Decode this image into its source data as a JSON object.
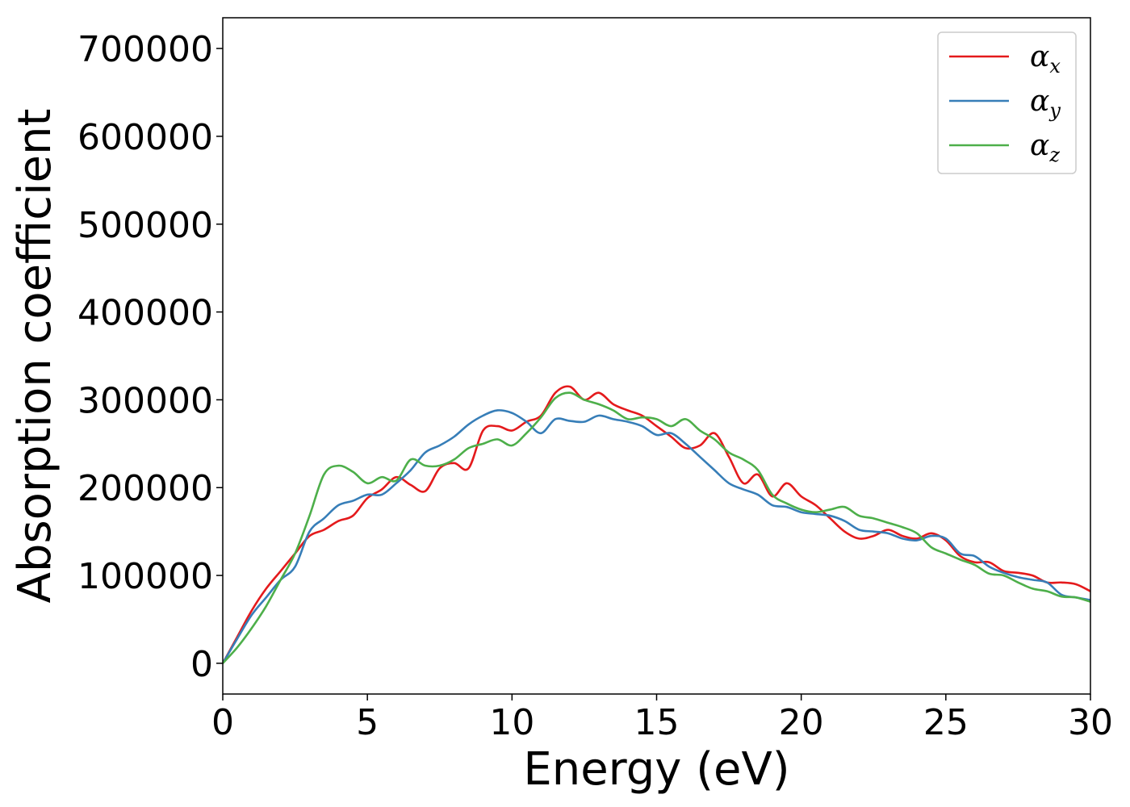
{
  "chart_data": {
    "type": "line",
    "title": "",
    "xlabel": "Energy (eV)",
    "ylabel": "Absorption coefficient",
    "xlim": [
      0,
      30
    ],
    "ylim": [
      -35000,
      735000
    ],
    "xticks": [
      0,
      5,
      10,
      15,
      20,
      25,
      30
    ],
    "yticks": [
      0,
      100000,
      200000,
      300000,
      400000,
      500000,
      600000,
      700000
    ],
    "grid": false,
    "legend_position": "top-right",
    "series": [
      {
        "name": "α_x",
        "name_base": "α",
        "name_sub": "x",
        "color": "#e41a1c",
        "points": [
          [
            0,
            0
          ],
          [
            0.5,
            30000
          ],
          [
            1,
            60000
          ],
          [
            1.5,
            85000
          ],
          [
            2,
            105000
          ],
          [
            2.5,
            125000
          ],
          [
            3,
            145000
          ],
          [
            3.5,
            152000
          ],
          [
            4,
            162000
          ],
          [
            4.5,
            168000
          ],
          [
            5,
            188000
          ],
          [
            5.5,
            198000
          ],
          [
            6,
            212000
          ],
          [
            6.5,
            203000
          ],
          [
            7,
            196000
          ],
          [
            7.5,
            222000
          ],
          [
            8,
            228000
          ],
          [
            8.5,
            222000
          ],
          [
            9,
            265000
          ],
          [
            9.5,
            270000
          ],
          [
            10,
            265000
          ],
          [
            10.5,
            275000
          ],
          [
            11,
            282000
          ],
          [
            11.5,
            308000
          ],
          [
            12,
            315000
          ],
          [
            12.5,
            300000
          ],
          [
            13,
            308000
          ],
          [
            13.5,
            295000
          ],
          [
            14,
            288000
          ],
          [
            14.5,
            282000
          ],
          [
            15,
            270000
          ],
          [
            15.5,
            258000
          ],
          [
            16,
            245000
          ],
          [
            16.5,
            248000
          ],
          [
            17,
            262000
          ],
          [
            17.5,
            235000
          ],
          [
            18,
            205000
          ],
          [
            18.5,
            215000
          ],
          [
            19,
            190000
          ],
          [
            19.5,
            205000
          ],
          [
            20,
            190000
          ],
          [
            20.5,
            180000
          ],
          [
            21,
            165000
          ],
          [
            21.5,
            150000
          ],
          [
            22,
            142000
          ],
          [
            22.5,
            145000
          ],
          [
            23,
            152000
          ],
          [
            23.5,
            145000
          ],
          [
            24,
            142000
          ],
          [
            24.5,
            148000
          ],
          [
            25,
            140000
          ],
          [
            25.5,
            122000
          ],
          [
            26,
            115000
          ],
          [
            26.5,
            115000
          ],
          [
            27,
            105000
          ],
          [
            27.5,
            103000
          ],
          [
            28,
            100000
          ],
          [
            28.5,
            92000
          ],
          [
            29,
            92000
          ],
          [
            29.5,
            90000
          ],
          [
            30,
            82000
          ]
        ]
      },
      {
        "name": "α_y",
        "name_base": "α",
        "name_sub": "y",
        "color": "#377eb8",
        "points": [
          [
            0,
            0
          ],
          [
            0.5,
            28000
          ],
          [
            1,
            55000
          ],
          [
            1.5,
            75000
          ],
          [
            2,
            95000
          ],
          [
            2.5,
            110000
          ],
          [
            3,
            150000
          ],
          [
            3.5,
            165000
          ],
          [
            4,
            180000
          ],
          [
            4.5,
            185000
          ],
          [
            5,
            192000
          ],
          [
            5.5,
            192000
          ],
          [
            6,
            205000
          ],
          [
            6.5,
            220000
          ],
          [
            7,
            240000
          ],
          [
            7.5,
            248000
          ],
          [
            8,
            258000
          ],
          [
            8.5,
            272000
          ],
          [
            9,
            282000
          ],
          [
            9.5,
            288000
          ],
          [
            10,
            285000
          ],
          [
            10.5,
            275000
          ],
          [
            11,
            262000
          ],
          [
            11.5,
            278000
          ],
          [
            12,
            276000
          ],
          [
            12.5,
            275000
          ],
          [
            13,
            282000
          ],
          [
            13.5,
            278000
          ],
          [
            14,
            275000
          ],
          [
            14.5,
            270000
          ],
          [
            15,
            260000
          ],
          [
            15.5,
            262000
          ],
          [
            16,
            250000
          ],
          [
            16.5,
            235000
          ],
          [
            17,
            220000
          ],
          [
            17.5,
            205000
          ],
          [
            18,
            198000
          ],
          [
            18.5,
            192000
          ],
          [
            19,
            180000
          ],
          [
            19.5,
            178000
          ],
          [
            20,
            172000
          ],
          [
            20.5,
            170000
          ],
          [
            21,
            168000
          ],
          [
            21.5,
            162000
          ],
          [
            22,
            152000
          ],
          [
            22.5,
            150000
          ],
          [
            23,
            148000
          ],
          [
            23.5,
            142000
          ],
          [
            24,
            140000
          ],
          [
            24.5,
            145000
          ],
          [
            25,
            142000
          ],
          [
            25.5,
            125000
          ],
          [
            26,
            122000
          ],
          [
            26.5,
            110000
          ],
          [
            27,
            103000
          ],
          [
            27.5,
            98000
          ],
          [
            28,
            95000
          ],
          [
            28.5,
            92000
          ],
          [
            29,
            78000
          ],
          [
            29.5,
            75000
          ],
          [
            30,
            72000
          ]
        ]
      },
      {
        "name": "α_z",
        "name_base": "α",
        "name_sub": "z",
        "color": "#4daf4a",
        "points": [
          [
            0,
            0
          ],
          [
            0.5,
            18000
          ],
          [
            1,
            40000
          ],
          [
            1.5,
            65000
          ],
          [
            2,
            95000
          ],
          [
            2.5,
            125000
          ],
          [
            3,
            168000
          ],
          [
            3.5,
            215000
          ],
          [
            4,
            225000
          ],
          [
            4.5,
            218000
          ],
          [
            5,
            205000
          ],
          [
            5.5,
            212000
          ],
          [
            6,
            208000
          ],
          [
            6.5,
            232000
          ],
          [
            7,
            225000
          ],
          [
            7.5,
            225000
          ],
          [
            8,
            232000
          ],
          [
            8.5,
            245000
          ],
          [
            9,
            250000
          ],
          [
            9.5,
            255000
          ],
          [
            10,
            248000
          ],
          [
            10.5,
            262000
          ],
          [
            11,
            280000
          ],
          [
            11.5,
            302000
          ],
          [
            12,
            308000
          ],
          [
            12.5,
            300000
          ],
          [
            13,
            295000
          ],
          [
            13.5,
            288000
          ],
          [
            14,
            278000
          ],
          [
            14.5,
            280000
          ],
          [
            15,
            278000
          ],
          [
            15.5,
            270000
          ],
          [
            16,
            278000
          ],
          [
            16.5,
            265000
          ],
          [
            17,
            255000
          ],
          [
            17.5,
            240000
          ],
          [
            18,
            232000
          ],
          [
            18.5,
            220000
          ],
          [
            19,
            192000
          ],
          [
            19.5,
            182000
          ],
          [
            20,
            175000
          ],
          [
            20.5,
            172000
          ],
          [
            21,
            175000
          ],
          [
            21.5,
            178000
          ],
          [
            22,
            168000
          ],
          [
            22.5,
            165000
          ],
          [
            23,
            160000
          ],
          [
            23.5,
            155000
          ],
          [
            24,
            148000
          ],
          [
            24.5,
            132000
          ],
          [
            25,
            125000
          ],
          [
            25.5,
            118000
          ],
          [
            26,
            112000
          ],
          [
            26.5,
            102000
          ],
          [
            27,
            100000
          ],
          [
            27.5,
            92000
          ],
          [
            28,
            85000
          ],
          [
            28.5,
            82000
          ],
          [
            29,
            76000
          ],
          [
            29.5,
            75000
          ],
          [
            30,
            70000
          ]
        ]
      }
    ]
  }
}
